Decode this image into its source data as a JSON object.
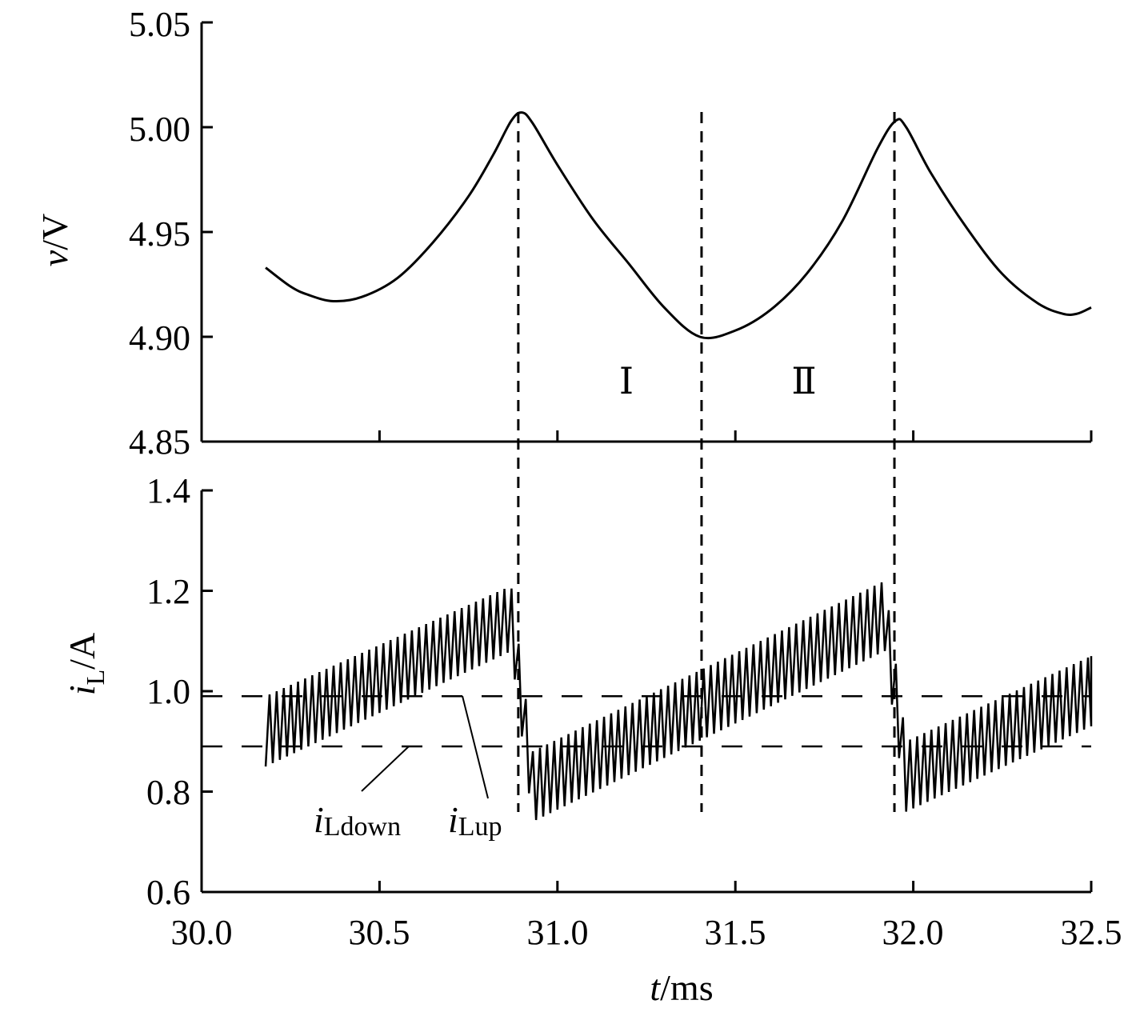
{
  "chart_data": [
    {
      "type": "line",
      "ylabel": "v/V",
      "ylabel_var": "v",
      "ylabel_unit": "/V",
      "ylim": [
        4.85,
        5.05
      ],
      "yticks": [
        "4.85",
        "4.90",
        "4.95",
        "5.00",
        "5.05"
      ],
      "xlim": [
        30.0,
        32.5
      ],
      "grid": false,
      "series": [
        {
          "t": [
            30.18,
            30.25,
            30.3,
            30.37,
            30.45,
            30.55,
            30.65,
            30.75,
            30.82,
            30.87,
            30.9,
            30.93,
            31.0,
            31.1,
            31.2,
            31.3,
            31.4,
            31.5,
            31.6,
            31.7,
            31.8,
            31.9,
            31.95,
            31.98,
            32.05,
            32.15,
            32.25,
            32.35,
            32.42,
            32.46,
            32.5
          ],
          "v": [
            4.933,
            4.924,
            4.92,
            4.917,
            4.919,
            4.928,
            4.945,
            4.967,
            4.987,
            5.003,
            5.007,
            5.002,
            4.982,
            4.956,
            4.935,
            4.914,
            4.9,
            4.903,
            4.913,
            4.93,
            4.955,
            4.99,
            5.003,
            5.0,
            4.978,
            4.952,
            4.93,
            4.916,
            4.911,
            4.911,
            4.914
          ]
        }
      ],
      "annotations": {
        "region_1": "Ⅰ",
        "region_2": "Ⅱ"
      },
      "vlines_t": [
        30.89,
        31.405,
        31.947
      ]
    },
    {
      "type": "line",
      "ylabel_var": "i",
      "ylabel_sub": "L",
      "ylabel_unit": "/A",
      "ylim": [
        0.6,
        1.4
      ],
      "yticks": [
        "0.6",
        "0.8",
        "1.0",
        "1.2",
        "1.4"
      ],
      "xlabel_var": "t",
      "xlabel_unit": "/ms",
      "xlim": [
        30.0,
        32.5
      ],
      "xticks": [
        "30.0",
        "30.5",
        "31.0",
        "31.5",
        "32.0",
        "32.5"
      ],
      "grid": false,
      "ripple_period_ms": 0.02,
      "envelope": {
        "t": [
          30.18,
          30.87,
          30.93,
          31.92,
          31.98,
          32.5
        ],
        "upper": [
          0.99,
          1.21,
          0.88,
          1.22,
          0.9,
          1.07
        ],
        "lower": [
          0.85,
          1.08,
          0.74,
          1.08,
          0.76,
          0.93
        ]
      },
      "hlines": [
        {
          "name_var": "i",
          "name_sub": "Lup",
          "value": 0.99
        },
        {
          "name_var": "i",
          "name_sub": "Ldown",
          "value": 0.89
        }
      ],
      "vlines_t": [
        30.89,
        31.405,
        31.947
      ]
    }
  ]
}
